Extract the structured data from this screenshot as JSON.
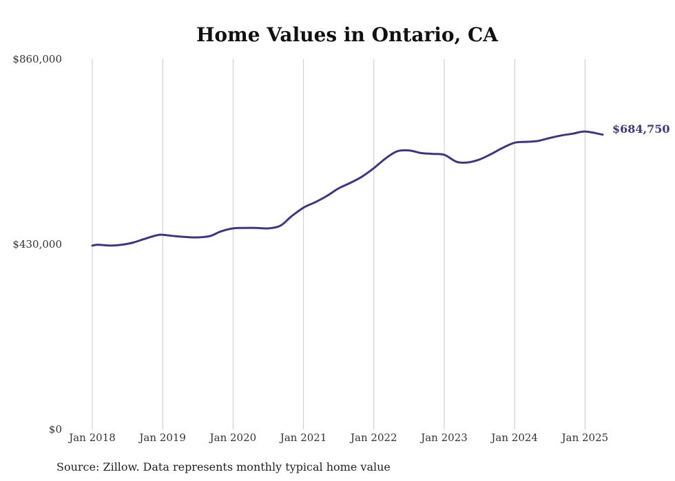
{
  "chart_data": {
    "type": "line",
    "title": "Home Values in Ontario, CA",
    "source_note": "Source: Zillow. Data represents monthly typical home value",
    "line_color": "#3d3585",
    "ylim": [
      0,
      860000
    ],
    "y_ticks": [
      {
        "value": 0,
        "label": "$0"
      },
      {
        "value": 430000,
        "label": "$430,000"
      },
      {
        "value": 860000,
        "label": "$860,000"
      }
    ],
    "x_ticks": [
      {
        "value": 2018.0,
        "label": "Jan 2018"
      },
      {
        "value": 2019.0,
        "label": "Jan 2019"
      },
      {
        "value": 2020.0,
        "label": "Jan 2020"
      },
      {
        "value": 2021.0,
        "label": "Jan 2021"
      },
      {
        "value": 2022.0,
        "label": "Jan 2022"
      },
      {
        "value": 2023.0,
        "label": "Jan 2023"
      },
      {
        "value": 2024.0,
        "label": "Jan 2024"
      },
      {
        "value": 2025.0,
        "label": "Jan 2025"
      }
    ],
    "xlim": [
      2018.0,
      2025.25
    ],
    "grid": "vertical",
    "end_label": "$684,750",
    "series": [
      {
        "x": [
          2018.0,
          2018.08,
          2018.25,
          2018.42,
          2018.58,
          2018.75,
          2018.92,
          2019.0,
          2019.17,
          2019.33,
          2019.5,
          2019.67,
          2019.83,
          2020.0,
          2020.17,
          2020.33,
          2020.5,
          2020.67,
          2020.83,
          2021.0,
          2021.17,
          2021.33,
          2021.5,
          2021.67,
          2021.83,
          2022.0,
          2022.17,
          2022.33,
          2022.5,
          2022.67,
          2022.83,
          2023.0,
          2023.17,
          2023.33,
          2023.5,
          2023.67,
          2023.83,
          2024.0,
          2024.17,
          2024.33,
          2024.5,
          2024.67,
          2024.83,
          2025.0,
          2025.25
        ],
        "y": [
          427000,
          429000,
          427000,
          429000,
          434000,
          443000,
          451000,
          452000,
          449000,
          447000,
          446000,
          449000,
          460000,
          467000,
          468000,
          468000,
          467000,
          473000,
          495000,
          515000,
          528000,
          542000,
          560000,
          573000,
          587000,
          607000,
          630000,
          646000,
          648000,
          642000,
          640000,
          638000,
          622000,
          620000,
          627000,
          640000,
          654000,
          666000,
          668000,
          670000,
          677000,
          683000,
          687000,
          692000,
          684750
        ]
      }
    ]
  }
}
